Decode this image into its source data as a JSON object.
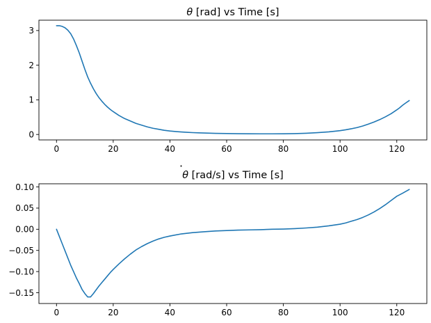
{
  "colors": {
    "series": "#1f77b4",
    "axes": "#000000",
    "background": "#ffffff"
  },
  "chart_data": [
    {
      "type": "line",
      "title": {
        "symbol": "θ",
        "rest": " [rad] vs Time [s]",
        "dotted_symbol": false
      },
      "xlabel": "",
      "ylabel": "",
      "xlim": [
        -6.2,
        130.6
      ],
      "ylim": [
        -0.157,
        3.299
      ],
      "grid": false,
      "legend": "none",
      "xticks": [
        {
          "value": 0,
          "label": "0"
        },
        {
          "value": 20,
          "label": "20"
        },
        {
          "value": 40,
          "label": "40"
        },
        {
          "value": 60,
          "label": "60"
        },
        {
          "value": 80,
          "label": "80"
        },
        {
          "value": 100,
          "label": "100"
        },
        {
          "value": 120,
          "label": "120"
        }
      ],
      "yticks": [
        {
          "value": 0,
          "label": "0"
        },
        {
          "value": 1,
          "label": "1"
        },
        {
          "value": 2,
          "label": "2"
        },
        {
          "value": 3,
          "label": "3"
        }
      ],
      "series": [
        {
          "x": [
            0,
            1,
            2,
            3,
            4,
            5,
            6,
            7,
            8,
            9,
            10,
            11,
            12,
            13,
            14,
            15,
            16,
            17,
            18,
            19,
            20,
            22,
            24,
            26,
            28,
            30,
            32,
            34,
            36,
            38,
            40,
            42,
            44,
            46,
            48,
            50,
            52,
            54,
            56,
            58,
            60,
            64,
            68,
            72,
            76,
            80,
            84,
            88,
            92,
            96,
            100,
            102,
            104,
            106,
            108,
            110,
            112,
            114,
            116,
            118,
            120,
            121,
            122,
            123,
            124.4
          ],
          "y": [
            3.14,
            3.14,
            3.12,
            3.08,
            3.01,
            2.91,
            2.76,
            2.57,
            2.36,
            2.12,
            1.88,
            1.66,
            1.48,
            1.32,
            1.18,
            1.06,
            0.96,
            0.87,
            0.79,
            0.72,
            0.66,
            0.55,
            0.46,
            0.39,
            0.32,
            0.27,
            0.22,
            0.18,
            0.15,
            0.12,
            0.1,
            0.085,
            0.072,
            0.062,
            0.054,
            0.047,
            0.042,
            0.037,
            0.033,
            0.03,
            0.027,
            0.023,
            0.02,
            0.019,
            0.019,
            0.021,
            0.026,
            0.036,
            0.052,
            0.075,
            0.11,
            0.135,
            0.165,
            0.2,
            0.245,
            0.3,
            0.36,
            0.43,
            0.51,
            0.6,
            0.71,
            0.77,
            0.84,
            0.9,
            0.98
          ]
        }
      ]
    },
    {
      "type": "line",
      "title": {
        "symbol": "θ",
        "rest": " [rad/s] vs Time [s]",
        "dotted_symbol": true
      },
      "xlabel": "",
      "ylabel": "",
      "xlim": [
        -6.2,
        130.6
      ],
      "ylim": [
        -0.1755,
        0.1075
      ],
      "grid": false,
      "legend": "none",
      "xticks": [
        {
          "value": 0,
          "label": "0"
        },
        {
          "value": 20,
          "label": "20"
        },
        {
          "value": 40,
          "label": "40"
        },
        {
          "value": 60,
          "label": "60"
        },
        {
          "value": 80,
          "label": "80"
        },
        {
          "value": 100,
          "label": "100"
        },
        {
          "value": 120,
          "label": "120"
        }
      ],
      "yticks": [
        {
          "value": 0.1,
          "label": "0.10"
        },
        {
          "value": 0.05,
          "label": "0.05"
        },
        {
          "value": 0,
          "label": "0.00"
        },
        {
          "value": -0.05,
          "label": "−0.05"
        },
        {
          "value": -0.1,
          "label": "−0.10"
        },
        {
          "value": -0.15,
          "label": "−0.15"
        }
      ],
      "series": [
        {
          "x": [
            0,
            1,
            2,
            3,
            4,
            5,
            6,
            7,
            8,
            9,
            10,
            11,
            12,
            13,
            14,
            15,
            16,
            17,
            18,
            19,
            20,
            22,
            24,
            26,
            28,
            30,
            32,
            34,
            36,
            38,
            40,
            44,
            48,
            52,
            56,
            60,
            64,
            68,
            72,
            76,
            80,
            84,
            88,
            92,
            96,
            100,
            102,
            104,
            106,
            108,
            110,
            112,
            114,
            116,
            118,
            120,
            122,
            124.4
          ],
          "y": [
            0,
            -0.017,
            -0.034,
            -0.051,
            -0.068,
            -0.085,
            -0.1,
            -0.115,
            -0.128,
            -0.142,
            -0.152,
            -0.16,
            -0.16,
            -0.152,
            -0.143,
            -0.134,
            -0.126,
            -0.118,
            -0.11,
            -0.102,
            -0.095,
            -0.082,
            -0.07,
            -0.059,
            -0.049,
            -0.041,
            -0.034,
            -0.028,
            -0.023,
            -0.019,
            -0.016,
            -0.011,
            -0.008,
            -0.006,
            -0.004,
            -0.003,
            -0.002,
            -0.0015,
            -0.001,
            0,
            0.0005,
            0.0015,
            0.003,
            0.005,
            0.008,
            0.012,
            0.015,
            0.019,
            0.023,
            0.028,
            0.034,
            0.041,
            0.049,
            0.058,
            0.068,
            0.078,
            0.085,
            0.094
          ]
        }
      ]
    }
  ]
}
